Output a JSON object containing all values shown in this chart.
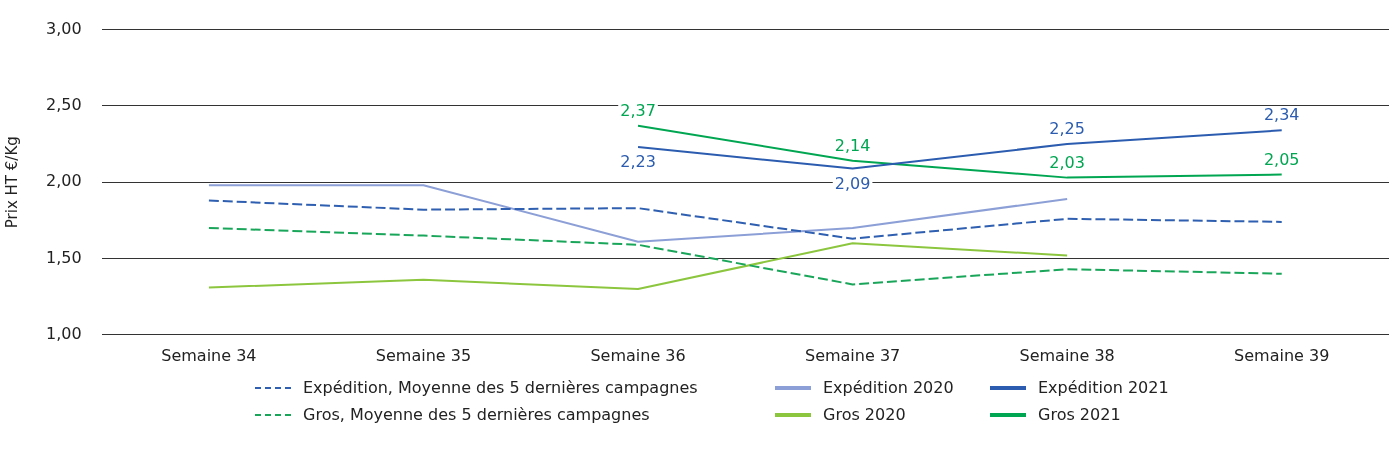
{
  "chart_data": {
    "type": "line",
    "ylabel": "Prix HT €/Kg",
    "categories": [
      "Semaine 34",
      "Semaine 35",
      "Semaine 36",
      "Semaine 37",
      "Semaine 38",
      "Semaine 39"
    ],
    "ylim": [
      1,
      3
    ],
    "yticks": [
      {
        "value": 1,
        "label": "1,00"
      },
      {
        "value": 1.5,
        "label": "1,50"
      },
      {
        "value": 2,
        "label": "2,00"
      },
      {
        "value": 2.5,
        "label": "2,50"
      },
      {
        "value": 3,
        "label": "3,00"
      }
    ],
    "grid": "y",
    "legend": "bottom",
    "marker": "none",
    "series": [
      {
        "name": "Expédition, Moyenne des 5 dernières campagnes",
        "color": "#2e5fb0",
        "line_style": "dashed",
        "values": [
          1.88,
          1.82,
          1.83,
          1.63,
          1.76,
          1.74
        ]
      },
      {
        "name": "Expédition 2020",
        "color": "#8c9fd6",
        "line_style": "solid",
        "values": [
          1.98,
          1.98,
          1.61,
          1.7,
          1.89,
          null
        ]
      },
      {
        "name": "Expédition 2021",
        "color": "#2b5caf",
        "line_style": "solid",
        "values": [
          null,
          null,
          2.23,
          2.09,
          2.25,
          2.34
        ],
        "value_labels": [
          null,
          null,
          "2,23",
          "2,09",
          "2,25",
          "2,34"
        ]
      },
      {
        "name": "Gros, Moyenne des 5 dernières campagnes",
        "color": "#1aa65a",
        "line_style": "dashed",
        "values": [
          1.7,
          1.65,
          1.59,
          1.33,
          1.43,
          1.4
        ]
      },
      {
        "name": "Gros 2020",
        "color": "#8cc63f",
        "line_style": "solid",
        "values": [
          1.31,
          1.36,
          1.3,
          1.6,
          1.52,
          null
        ]
      },
      {
        "name": "Gros 2021",
        "color": "#00a651",
        "line_style": "solid",
        "values": [
          null,
          null,
          2.37,
          2.14,
          2.03,
          2.05
        ],
        "value_labels": [
          null,
          null,
          "2,37",
          "2,14",
          "2,03",
          "2,05"
        ]
      }
    ]
  }
}
